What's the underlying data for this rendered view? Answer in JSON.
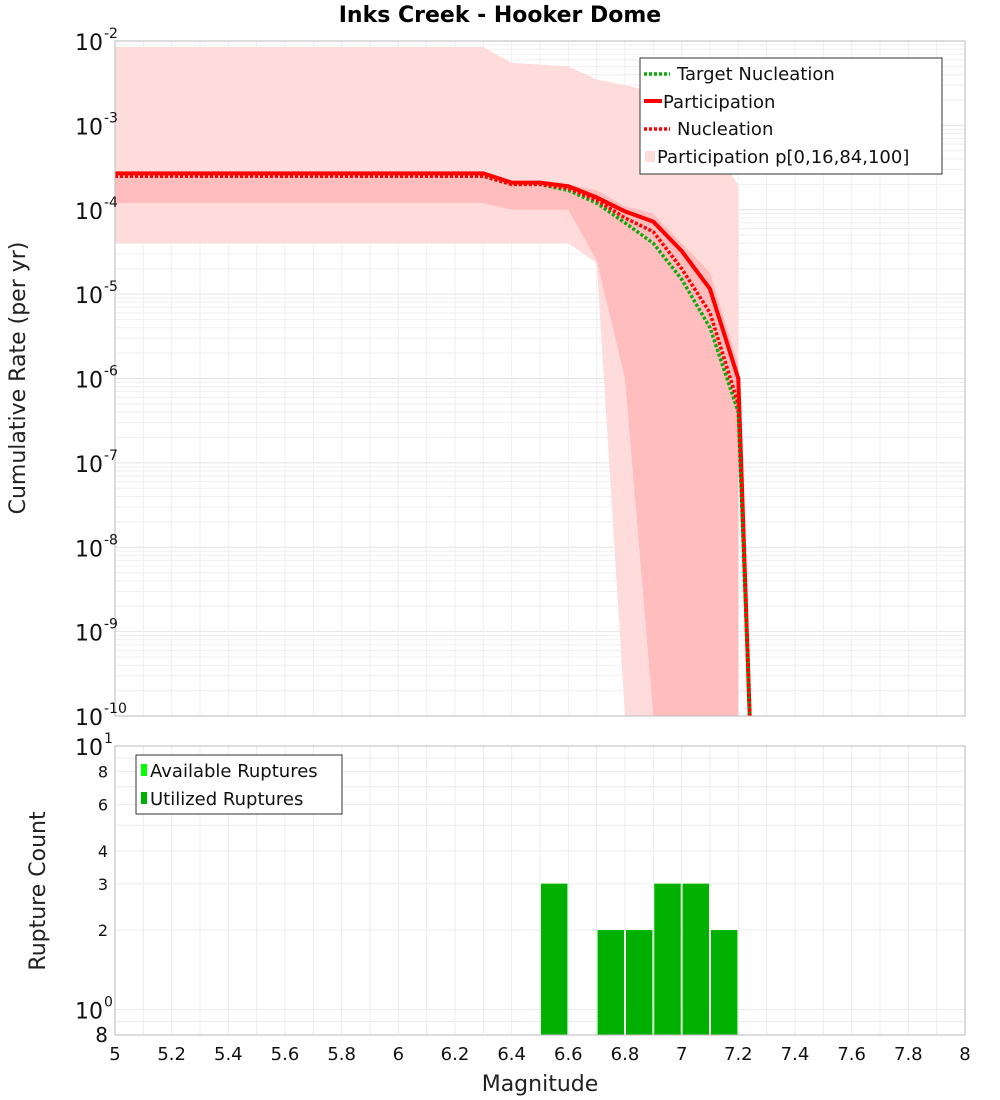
{
  "colors": {
    "target_nucleation": "#0aaa0a",
    "participation": "#ff0000",
    "nucleation": "#ff0000",
    "band_outer": "#ffdcdc",
    "band_inner": "#ffbdbd",
    "available": "#00ff00",
    "utilized": "#00b000",
    "grid": "#e4e4e4",
    "frame": "#bbbbbb"
  },
  "chart_data": [
    {
      "type": "line",
      "title": "Inks Creek - Hooker Dome",
      "xlabel": "",
      "ylabel": "Cumulative Rate (per yr)",
      "xlim": [
        5,
        8
      ],
      "ylim": [
        1e-10,
        0.01
      ],
      "yscale": "log",
      "grid": true,
      "legend_position": "top-right",
      "ytick_exponents": [
        "-2",
        "-3",
        "-4",
        "-5",
        "-6",
        "-7",
        "-8",
        "-9",
        "-10"
      ],
      "series": [
        {
          "name": "Target Nucleation",
          "style": "dotted",
          "x": [
            5.0,
            5.1,
            5.3,
            5.5,
            5.7,
            5.9,
            6.1,
            6.3,
            6.4,
            6.5,
            6.6,
            6.7,
            6.8,
            6.9,
            7.0,
            7.1,
            7.2,
            7.24
          ],
          "y": [
            0.00025,
            0.00025,
            0.00025,
            0.00025,
            0.00025,
            0.00025,
            0.00025,
            0.00025,
            0.0002,
            0.0002,
            0.00017,
            0.00012,
            7e-05,
            4e-05,
            1.5e-05,
            4e-06,
            4e-07,
            1e-10
          ]
        },
        {
          "name": "Participation",
          "style": "solid",
          "x": [
            5.0,
            5.1,
            5.3,
            5.5,
            5.7,
            5.9,
            6.1,
            6.3,
            6.4,
            6.5,
            6.6,
            6.7,
            6.8,
            6.9,
            7.0,
            7.1,
            7.2,
            7.24
          ],
          "y": [
            0.00027,
            0.00027,
            0.00027,
            0.00027,
            0.00027,
            0.00027,
            0.00027,
            0.00027,
            0.00021,
            0.00021,
            0.00019,
            0.00014,
            9.55e-05,
            7.24e-05,
            3.24e-05,
            1.15e-05,
            1e-06,
            1e-10
          ]
        },
        {
          "name": "Nucleation",
          "style": "dotted",
          "x": [
            5.0,
            5.1,
            5.3,
            5.5,
            5.7,
            5.9,
            6.1,
            6.3,
            6.4,
            6.5,
            6.6,
            6.7,
            6.8,
            6.9,
            7.0,
            7.1,
            7.2,
            7.24
          ],
          "y": [
            0.00025,
            0.00025,
            0.00025,
            0.00025,
            0.00025,
            0.00025,
            0.00025,
            0.00025,
            0.0002,
            0.0002,
            0.00018,
            0.00013,
            8e-05,
            5.5e-05,
            2e-05,
            6e-06,
            5e-07,
            1e-10
          ]
        },
        {
          "name": "Participation p[0,16,84,100]",
          "style": "band",
          "outer_x": [
            5.0,
            6.3,
            6.4,
            6.6,
            6.7,
            6.8,
            6.9,
            7.0,
            7.1,
            7.2
          ],
          "outer_upper": [
            0.0085,
            0.0085,
            0.0055,
            0.005,
            0.0035,
            0.003,
            0.0025,
            0.0015,
            0.0006,
            0.0002
          ],
          "outer_lower": [
            4e-05,
            4e-05,
            4e-05,
            4e-05,
            2.34e-05,
            1e-10,
            1e-10,
            1e-10,
            1e-10,
            1e-10
          ],
          "inner_x": [
            5.0,
            6.3,
            6.4,
            6.6,
            6.7,
            6.8,
            6.9,
            7.0,
            7.1,
            7.2
          ],
          "inner_upper": [
            0.00027,
            0.00027,
            0.00022,
            0.0002,
            0.00017,
            0.00011,
            9e-05,
            4e-05,
            1.8e-05,
            1.5e-06
          ],
          "inner_lower": [
            0.00012,
            0.00012,
            0.0001,
            0.0001,
            2.5e-05,
            1e-06,
            1e-10,
            1e-10,
            1e-10,
            1e-10
          ]
        }
      ]
    },
    {
      "type": "bar",
      "title": "",
      "xlabel": "Magnitude",
      "ylabel": "Rupture Count",
      "xlim": [
        5,
        8
      ],
      "ylim": [
        0.8,
        10
      ],
      "yscale": "log",
      "grid": true,
      "legend_position": "top-left",
      "x_ticks": [
        "5",
        "5.2",
        "5.4",
        "5.6",
        "5.8",
        "6",
        "6.2",
        "6.4",
        "6.6",
        "6.8",
        "7",
        "7.2",
        "7.4",
        "7.6",
        "7.8",
        "8"
      ],
      "y_ticks": [
        "2",
        "3",
        "4",
        "6",
        "8"
      ],
      "y_decade_labels": [
        {
          "base": "10",
          "exp": "1"
        },
        {
          "base": "10",
          "exp": "0"
        }
      ],
      "y_bottom_label": "8",
      "series": [
        {
          "name": "Available Ruptures",
          "x": [
            6.55,
            6.75,
            6.85,
            6.95,
            7.05,
            7.15
          ],
          "values": [
            3,
            2,
            2,
            3,
            3,
            2
          ]
        },
        {
          "name": "Utilized Ruptures",
          "x": [
            6.55,
            6.75,
            6.85,
            6.95,
            7.05,
            7.15
          ],
          "values": [
            3,
            2,
            2,
            3,
            3,
            2
          ]
        }
      ],
      "bar_width": 0.1
    }
  ]
}
